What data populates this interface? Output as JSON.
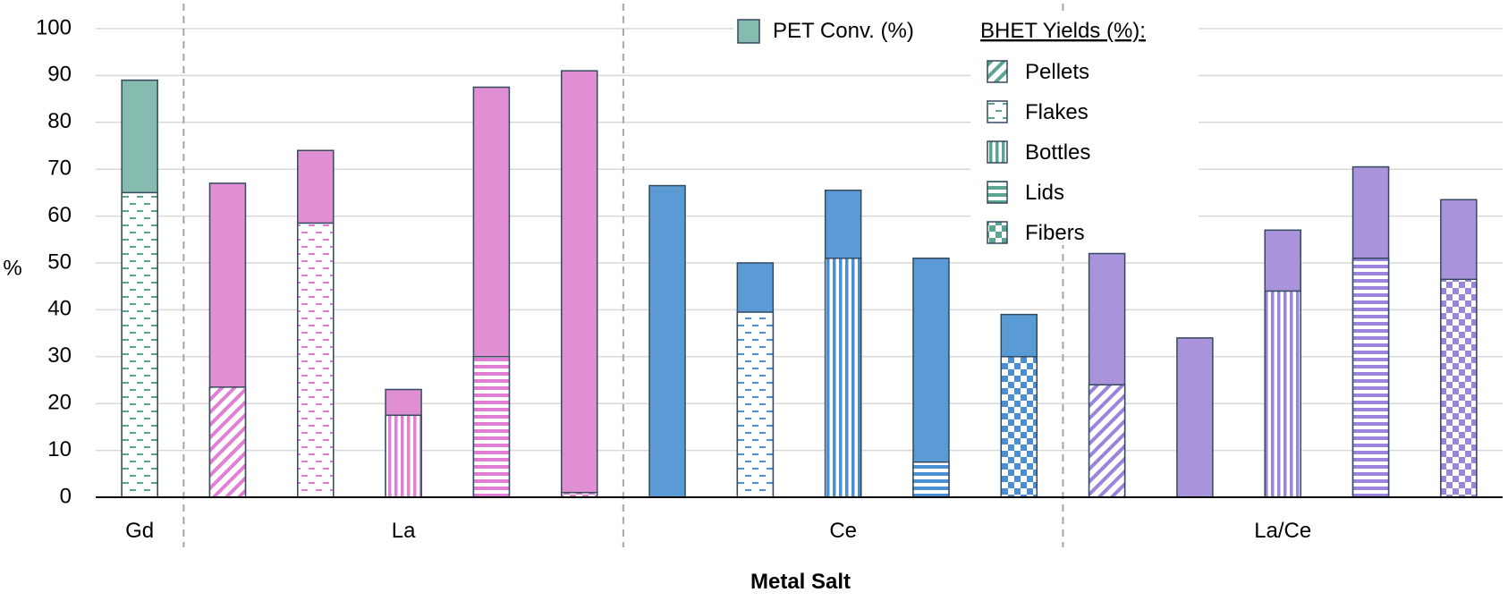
{
  "chart_data": {
    "type": "bar",
    "stacked": true,
    "ylabel": "%",
    "xlabel": "Metal Salt",
    "ylim": [
      0,
      100
    ],
    "yticks": [
      0,
      10,
      20,
      30,
      40,
      50,
      60,
      70,
      80,
      90,
      100
    ],
    "grid": true,
    "legend": {
      "placement": "top-right",
      "conv_label": "PET Conv. (%)",
      "yield_heading": "BHET Yields (%):",
      "pattern_labels": [
        "Pellets",
        "Flakes",
        "Bottles",
        "Lids",
        "Fibers"
      ]
    },
    "groups": [
      {
        "label": "Gd",
        "color": "#85bcaf",
        "accent": "#5aa58f"
      },
      {
        "label": "La",
        "color": "#e08fd4",
        "accent": "#e07fd3"
      },
      {
        "label": "Ce",
        "color": "#5a9bd6",
        "accent": "#4a8fd6"
      },
      {
        "label": "La/Ce",
        "color": "#a994dc",
        "accent": "#9a85dc"
      }
    ],
    "bars": [
      {
        "group": "Gd",
        "pet_conv": 89,
        "bhet_yield": 65,
        "pattern": "Flakes"
      },
      {
        "group": "La",
        "pet_conv": 67,
        "bhet_yield": 23.5,
        "pattern": "Pellets"
      },
      {
        "group": "La",
        "pet_conv": 74,
        "bhet_yield": 58.5,
        "pattern": "Flakes"
      },
      {
        "group": "La",
        "pet_conv": 23,
        "bhet_yield": 17.5,
        "pattern": "Bottles"
      },
      {
        "group": "La",
        "pet_conv": 87.5,
        "bhet_yield": 30,
        "pattern": "Lids"
      },
      {
        "group": "La",
        "pet_conv": 91,
        "bhet_yield": 1,
        "pattern": "Fibers"
      },
      {
        "group": "Ce",
        "pet_conv": 66.5,
        "bhet_yield": 0,
        "pattern": "Pellets"
      },
      {
        "group": "Ce",
        "pet_conv": 50,
        "bhet_yield": 39.5,
        "pattern": "Flakes"
      },
      {
        "group": "Ce",
        "pet_conv": 65.5,
        "bhet_yield": 51,
        "pattern": "Bottles"
      },
      {
        "group": "Ce",
        "pet_conv": 51,
        "bhet_yield": 7.5,
        "pattern": "Lids"
      },
      {
        "group": "Ce",
        "pet_conv": 39,
        "bhet_yield": 30,
        "pattern": "Fibers"
      },
      {
        "group": "La/Ce",
        "pet_conv": 52,
        "bhet_yield": 24,
        "pattern": "Pellets"
      },
      {
        "group": "La/Ce",
        "pet_conv": 34,
        "bhet_yield": 0,
        "pattern": "Flakes"
      },
      {
        "group": "La/Ce",
        "pet_conv": 57,
        "bhet_yield": 44,
        "pattern": "Bottles"
      },
      {
        "group": "La/Ce",
        "pet_conv": 70.5,
        "bhet_yield": 51,
        "pattern": "Lids"
      },
      {
        "group": "La/Ce",
        "pet_conv": 63.5,
        "bhet_yield": 46.5,
        "pattern": "Fibers"
      }
    ]
  }
}
